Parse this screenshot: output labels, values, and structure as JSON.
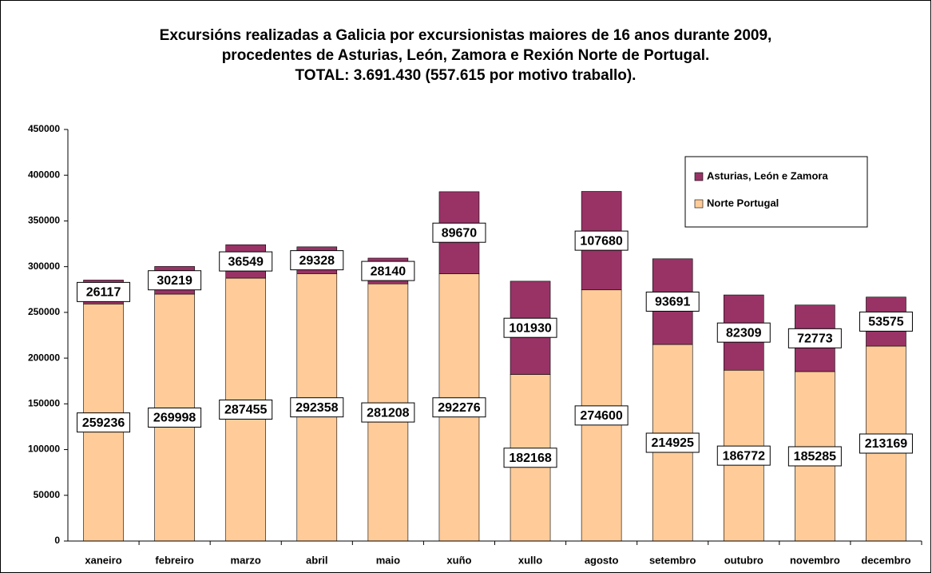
{
  "chart_data": {
    "type": "stacked_bar",
    "title": [
      "Excursións realizadas a Galicia por excursionistas maiores de 16 anos durante 2009,",
      "procedentes de Asturias, León, Zamora e Rexión Norte de Portugal.",
      "TOTAL: 3.691.430 (557.615 por motivo traballo)."
    ],
    "categories": [
      "xaneiro",
      "febreiro",
      "marzo",
      "abril",
      "maio",
      "xuño",
      "xullo",
      "agosto",
      "setembro",
      "outubro",
      "novembro",
      "decembro"
    ],
    "series": [
      {
        "name": "Norte Portugal",
        "color": "#ffcc99",
        "values": [
          259236,
          269998,
          287455,
          292358,
          281208,
          292276,
          182168,
          274600,
          214925,
          186772,
          185285,
          213169
        ]
      },
      {
        "name": "Asturias, León e Zamora",
        "color": "#993366",
        "values": [
          26117,
          30219,
          36549,
          29328,
          28140,
          89670,
          101930,
          107680,
          93691,
          82309,
          72773,
          53575
        ]
      }
    ],
    "ylim": [
      0,
      450000
    ],
    "yticks": [
      0,
      50000,
      100000,
      150000,
      200000,
      250000,
      300000,
      350000,
      400000,
      450000
    ],
    "legend": "upper right"
  }
}
